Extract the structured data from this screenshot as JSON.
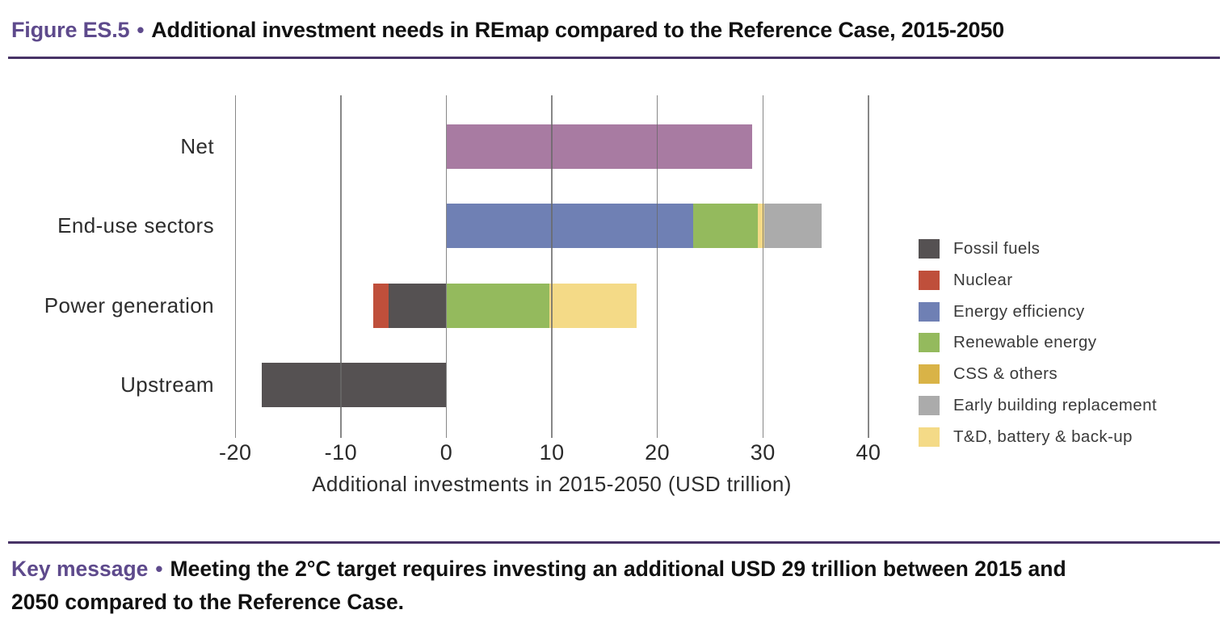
{
  "figure": {
    "label": "Figure ES.5",
    "bullet": "•",
    "title": "Additional investment needs in REmap compared to the Reference Case, 2015-2050"
  },
  "key_message": {
    "label": "Key message",
    "bullet": "•",
    "line1": "Meeting the 2°C target requires investing an additional USD 29 trillion between 2015 and",
    "line2": "2050 compared to the Reference Case."
  },
  "colors": {
    "title_purple": "#5e4a8c",
    "rule_purple": "#483366",
    "fossil_fuels": "#555152",
    "nuclear": "#bf4f3b",
    "energy_efficiency": "#6f80b4",
    "renewable_energy": "#94ba5d",
    "css_others": "#d9b347",
    "early_building": "#ababab",
    "td_battery": "#f4da87",
    "net": "#a87ba2",
    "gridline": "#696969"
  },
  "chart_data": {
    "type": "bar",
    "orientation": "horizontal",
    "stacked": true,
    "xlabel": "Additional investments in 2015-2050 (USD trillion)",
    "xlim": [
      -20,
      40
    ],
    "xticks": [
      "-20",
      "-10",
      "0",
      "10",
      "20",
      "30",
      "40"
    ],
    "xtick_values": [
      -20,
      -10,
      0,
      10,
      20,
      30,
      40
    ],
    "grid": true,
    "categories": [
      "Net",
      "End-use sectors",
      "Power generation",
      "Upstream"
    ],
    "bars": [
      {
        "category": "Net",
        "segments": [
          {
            "series": "Net",
            "color": "net",
            "from": 0,
            "to": 29
          }
        ]
      },
      {
        "category": "End-use sectors",
        "segments": [
          {
            "series": "Energy efficiency",
            "color": "energy_efficiency",
            "from": 0,
            "to": 23.4
          },
          {
            "series": "Renewable energy",
            "color": "renewable_energy",
            "from": 23.4,
            "to": 29.5
          },
          {
            "series": "T&D, battery & back-up",
            "color": "td_battery",
            "from": 29.5,
            "to": 30.1
          },
          {
            "series": "Early building replacement",
            "color": "early_building",
            "from": 30.1,
            "to": 35.6
          }
        ]
      },
      {
        "category": "Power generation",
        "segments": [
          {
            "series": "Nuclear",
            "color": "nuclear",
            "from": -6.9,
            "to": -5.5
          },
          {
            "series": "Fossil fuels",
            "color": "fossil_fuels",
            "from": -5.5,
            "to": 0
          },
          {
            "series": "Renewable energy",
            "color": "renewable_energy",
            "from": 0,
            "to": 9.8
          },
          {
            "series": "T&D, battery & back-up",
            "color": "td_battery",
            "from": 9.8,
            "to": 18
          }
        ]
      },
      {
        "category": "Upstream",
        "segments": [
          {
            "series": "Fossil fuels",
            "color": "fossil_fuels",
            "from": -17.5,
            "to": 0
          }
        ]
      }
    ],
    "legend": {
      "position": "right",
      "entries": [
        {
          "label": "Fossil fuels",
          "color": "fossil_fuels"
        },
        {
          "label": "Nuclear",
          "color": "nuclear"
        },
        {
          "label": "Energy efficiency",
          "color": "energy_efficiency"
        },
        {
          "label": "Renewable energy",
          "color": "renewable_energy"
        },
        {
          "label": "CSS & others",
          "color": "css_others"
        },
        {
          "label": "Early building replacement",
          "color": "early_building"
        },
        {
          "label": "T&D, battery & back-up",
          "color": "td_battery"
        }
      ]
    }
  }
}
